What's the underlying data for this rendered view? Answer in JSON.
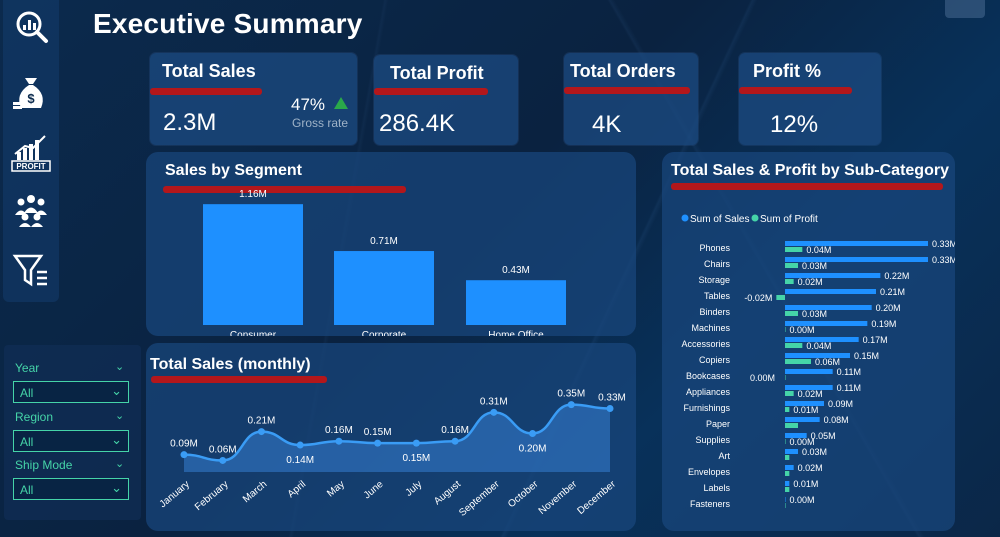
{
  "header": {
    "title": "Executive Summary"
  },
  "sidebar": {
    "icons": [
      "analytics-search-icon",
      "money-bag-icon",
      "profit-chart-icon",
      "team-icon",
      "filter-icon"
    ],
    "profit_icon_text": "PROFIT"
  },
  "kpis": {
    "total_sales": {
      "label": "Total Sales",
      "value": "2.3M",
      "change": "47%",
      "change_label": "Gross rate"
    },
    "total_profit": {
      "label": "Total Profit",
      "value": "286.4K"
    },
    "total_orders": {
      "label": "Total Orders",
      "value": "4K"
    },
    "profit_pct": {
      "label": "Profit %",
      "value": "12%"
    }
  },
  "segment_panel": {
    "title": "Sales by Segment"
  },
  "monthly_panel": {
    "title": "Total Sales (monthly)"
  },
  "subcat_panel": {
    "title": "Total Sales & Profit by Sub-Category",
    "legend": [
      "Sum of Sales",
      "Sum of Profit"
    ]
  },
  "filters": {
    "year": {
      "label": "Year",
      "value": "All"
    },
    "region": {
      "label": "Region",
      "value": "All"
    },
    "ship_mode": {
      "label": "Ship Mode",
      "value": "All"
    }
  },
  "colors": {
    "accent_blue": "#1e90ff",
    "profit_green": "#45d4a8",
    "red_underline": "#b3171b"
  },
  "chart_data": [
    {
      "type": "bar",
      "title": "Sales by Segment",
      "categories": [
        "Consumer",
        "Corporate",
        "Home Office"
      ],
      "values": [
        1.16,
        0.71,
        0.43
      ],
      "labels": [
        "1.16M",
        "0.71M",
        "0.43M"
      ],
      "ylim": [
        0,
        1.2
      ]
    },
    {
      "type": "area",
      "title": "Total Sales (monthly)",
      "categories": [
        "January",
        "February",
        "March",
        "April",
        "May",
        "June",
        "July",
        "August",
        "September",
        "October",
        "November",
        "December"
      ],
      "values": [
        0.09,
        0.06,
        0.21,
        0.14,
        0.16,
        0.15,
        0.15,
        0.16,
        0.31,
        0.2,
        0.35,
        0.33
      ],
      "labels": [
        "0.09M",
        "0.06M",
        "0.21M",
        "0.14M",
        "0.16M",
        "0.15M",
        "0.15M",
        "0.16M",
        "0.31M",
        "0.20M",
        "0.35M",
        "0.33M"
      ],
      "ylim": [
        0,
        0.4
      ]
    },
    {
      "type": "bar",
      "orientation": "horizontal",
      "title": "Total Sales & Profit by Sub-Category",
      "categories": [
        "Phones",
        "Chairs",
        "Storage",
        "Tables",
        "Binders",
        "Machines",
        "Accessories",
        "Copiers",
        "Bookcases",
        "Appliances",
        "Furnishings",
        "Paper",
        "Supplies",
        "Art",
        "Envelopes",
        "Labels",
        "Fasteners"
      ],
      "series": [
        {
          "name": "Sum of Sales",
          "values": [
            0.33,
            0.33,
            0.22,
            0.21,
            0.2,
            0.19,
            0.17,
            0.15,
            0.11,
            0.11,
            0.09,
            0.08,
            0.05,
            0.03,
            0.02,
            0.01,
            0.0
          ],
          "labels": [
            "0.33M",
            "0.33M",
            "0.22M",
            "0.21M",
            "0.20M",
            "0.19M",
            "0.17M",
            "0.15M",
            "0.11M",
            "0.11M",
            "0.09M",
            "0.08M",
            "0.05M",
            "0.03M",
            "0.02M",
            "0.01M",
            "0.00M"
          ]
        },
        {
          "name": "Sum of Profit",
          "values": [
            0.04,
            0.03,
            0.02,
            -0.02,
            0.03,
            0.0,
            0.04,
            0.06,
            0.0,
            0.02,
            0.01,
            0.03,
            0.0,
            0.01,
            0.01,
            0.01,
            0.0
          ],
          "labels": [
            "0.04M",
            "0.03M",
            "0.02M",
            "-0.02M",
            "0.03M",
            "0.00M",
            "0.04M",
            "0.06M",
            "0.00M",
            "0.02M",
            "0.01M",
            "",
            "0.00M",
            "",
            "",
            "",
            ""
          ]
        }
      ],
      "xlim": [
        -0.03,
        0.33
      ]
    }
  ]
}
